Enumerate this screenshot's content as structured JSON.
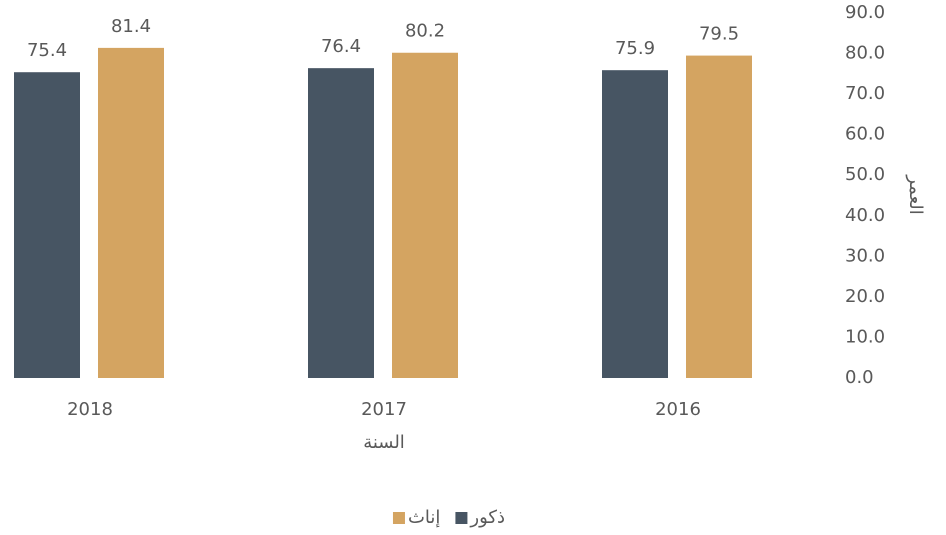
{
  "chart_data": {
    "type": "bar",
    "x_label": "السنة",
    "y_label": "العمر",
    "categories": [
      "2016",
      "2017",
      "2018"
    ],
    "series": [
      {
        "name": "ذكور",
        "color": "#475563",
        "values": [
          75.9,
          76.4,
          75.4
        ]
      },
      {
        "name": "إناث",
        "color": "#d4a461",
        "values": [
          79.5,
          80.2,
          81.4
        ]
      }
    ],
    "ylim": [
      0,
      90
    ],
    "yticks": [
      {
        "value": 0,
        "label": "0.0"
      },
      {
        "value": 10,
        "label": "10.0"
      },
      {
        "value": 20,
        "label": "20.0"
      },
      {
        "value": 30,
        "label": "30.0"
      },
      {
        "value": 40,
        "label": "40.0"
      },
      {
        "value": 50,
        "label": "50.0"
      },
      {
        "value": 60,
        "label": "60.0"
      },
      {
        "value": 70,
        "label": "70.0"
      },
      {
        "value": 80,
        "label": "80.0"
      },
      {
        "value": 90,
        "label": "90.0"
      }
    ],
    "grid": false,
    "legend": "bottom",
    "direction": "rtl"
  }
}
